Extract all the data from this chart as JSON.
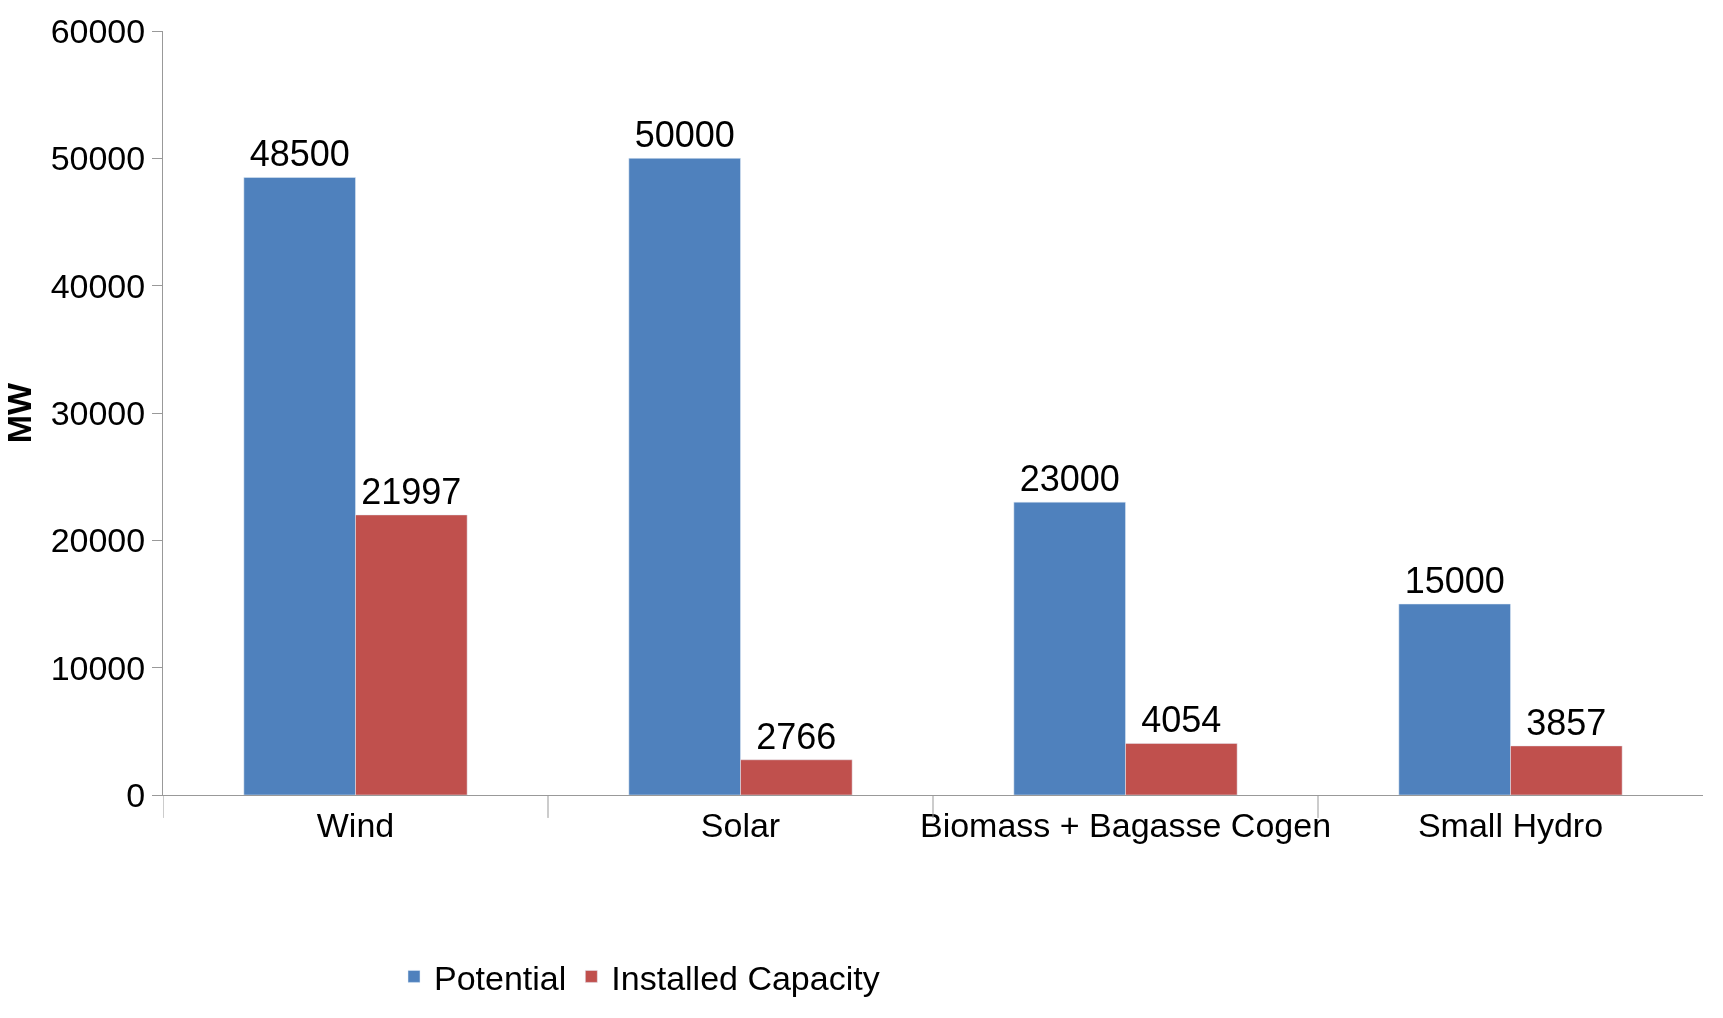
{
  "chart_data": {
    "type": "bar",
    "ylabel": "MW",
    "categories": [
      "Wind",
      "Solar",
      "Biomass + Bagasse Cogen",
      "Small Hydro"
    ],
    "series": [
      {
        "name": "Potential",
        "color": "#4f81bd",
        "values": [
          48500,
          50000,
          23000,
          15000
        ]
      },
      {
        "name": "Installed Capacity",
        "color": "#c0504d",
        "values": [
          21997,
          2766,
          4054,
          3857
        ]
      }
    ],
    "ylim": [
      0,
      60000
    ],
    "yticks": [
      0,
      10000,
      20000,
      30000,
      40000,
      50000,
      60000
    ],
    "legend": "bottom left",
    "data_labels": true
  }
}
